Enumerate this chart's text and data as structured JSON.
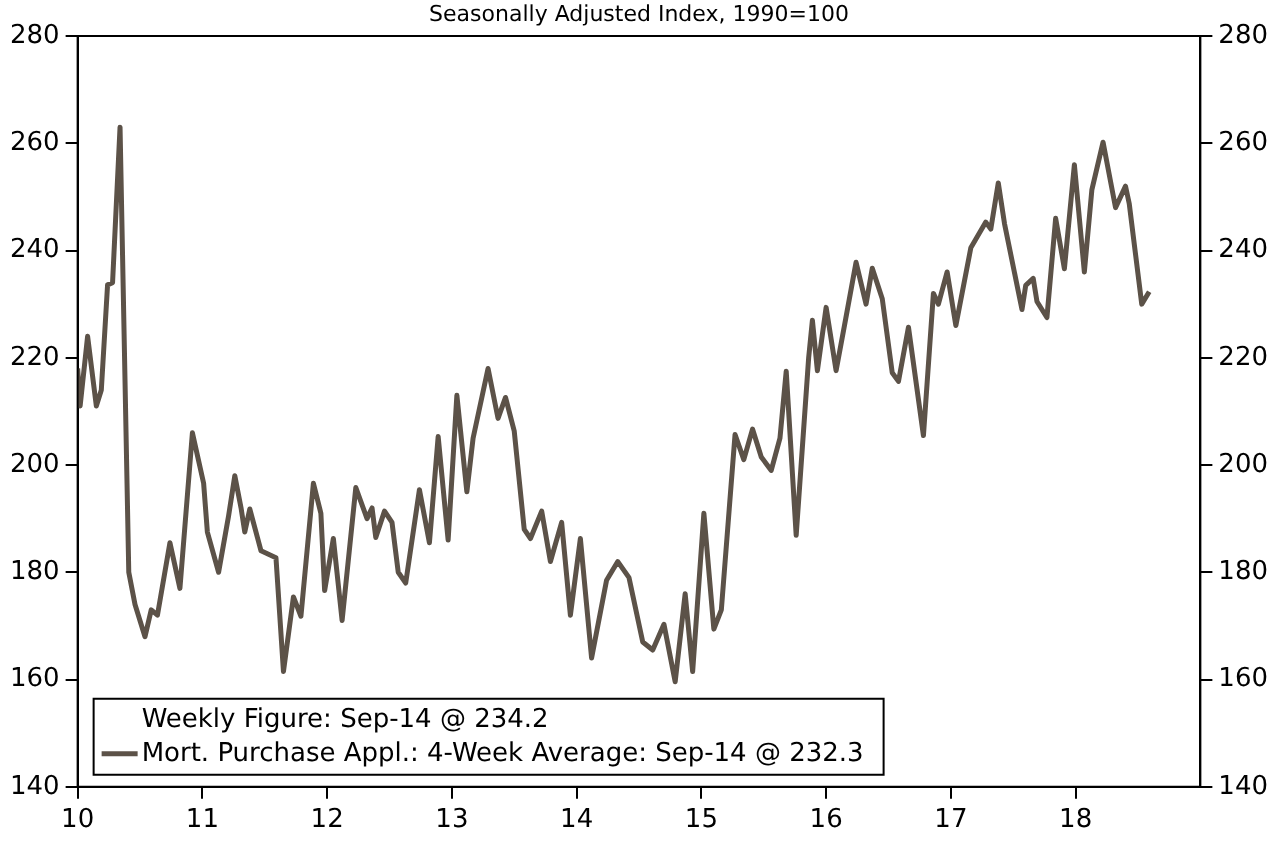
{
  "chart_data": {
    "type": "line",
    "title": "Seasonally Adjusted Index, 1990=100",
    "xlim": [
      10,
      19
    ],
    "xticks": [
      10,
      11,
      12,
      13,
      14,
      15,
      16,
      17,
      18
    ],
    "ylim": [
      140,
      280
    ],
    "yticks": [
      140,
      160,
      180,
      200,
      220,
      240,
      260,
      280
    ],
    "y2lim": [
      140,
      280
    ],
    "y2ticks": [
      140,
      160,
      180,
      200,
      220,
      240,
      260,
      280
    ],
    "grid": false,
    "legend": "bottom left",
    "marker": "none",
    "line_style": "solid",
    "annotations": [
      "Weekly Figure: Sep-14 @ 234.2"
    ],
    "series": [
      {
        "name": "Mort. Purchase Appl.: 4-Week Average: Sep-14 @ 232.3",
        "color": "#5c5248",
        "x": [
          10.0,
          10.02,
          10.08,
          10.15,
          10.19,
          10.24,
          10.28,
          10.34,
          10.41,
          10.46,
          10.54,
          10.59,
          10.64,
          10.74,
          10.82,
          10.92,
          11.01,
          11.04,
          11.13,
          11.21,
          11.26,
          11.31,
          11.34,
          11.38,
          11.47,
          11.59,
          11.65,
          11.73,
          11.79,
          11.89,
          11.95,
          11.98,
          12.05,
          12.12,
          12.23,
          12.32,
          12.36,
          12.39,
          12.46,
          12.52,
          12.57,
          12.63,
          12.74,
          12.82,
          12.89,
          12.97,
          13.04,
          13.12,
          13.17,
          13.29,
          13.37,
          13.43,
          13.5,
          13.58,
          13.63,
          13.72,
          13.79,
          13.88,
          13.95,
          14.03,
          14.12,
          14.24,
          14.33,
          14.42,
          14.53,
          14.61,
          14.7,
          14.79,
          14.87,
          14.93,
          15.02,
          15.1,
          15.16,
          15.27,
          15.34,
          15.41,
          15.48,
          15.56,
          15.63,
          15.68,
          15.76,
          15.86,
          15.89,
          15.93,
          16.0,
          16.08,
          16.15,
          16.24,
          16.32,
          16.37,
          16.45,
          16.53,
          16.58,
          16.66,
          16.78,
          16.86,
          16.9,
          16.97,
          17.04,
          17.16,
          17.28,
          17.32,
          17.38,
          17.43,
          17.57,
          17.6,
          17.66,
          17.69,
          17.77,
          17.84,
          17.91,
          17.99,
          18.07,
          18.13,
          18.22,
          18.32,
          18.4,
          18.43,
          18.53,
          18.59
        ],
        "values": [
          218,
          211,
          224,
          211,
          214,
          233.6,
          234,
          263,
          180,
          174,
          168,
          173,
          172,
          185.5,
          177,
          206,
          196.6,
          187.5,
          180,
          190.5,
          198,
          192,
          187.5,
          191.8,
          184,
          182.7,
          161.5,
          175.4,
          171.8,
          196.6,
          191,
          176.6,
          186.3,
          171,
          195.8,
          190,
          192,
          186.5,
          191.4,
          189.3,
          180,
          178,
          195.4,
          185.5,
          205.3,
          186,
          213,
          195,
          205,
          218,
          208.7,
          212.6,
          206.3,
          188,
          186.3,
          191.4,
          182,
          189.3,
          172,
          186.3,
          164,
          178.5,
          182,
          179,
          167,
          165.5,
          170.3,
          159.6,
          176,
          161.5,
          191,
          169.4,
          173,
          205.7,
          201,
          206.7,
          201.5,
          199,
          205,
          217.5,
          186.9,
          220,
          227,
          217.6,
          229.4,
          217.6,
          226.4,
          237.8,
          230,
          236.7,
          231,
          217.2,
          215.6,
          225.7,
          205.5,
          232,
          230,
          236,
          226,
          240.5,
          245.3,
          244,
          252.6,
          245,
          229,
          233.5,
          234.8,
          230.5,
          227.5,
          246,
          236.6,
          256,
          236,
          251.3,
          260.2,
          248,
          252,
          248.7,
          230,
          232.3
        ]
      }
    ]
  }
}
